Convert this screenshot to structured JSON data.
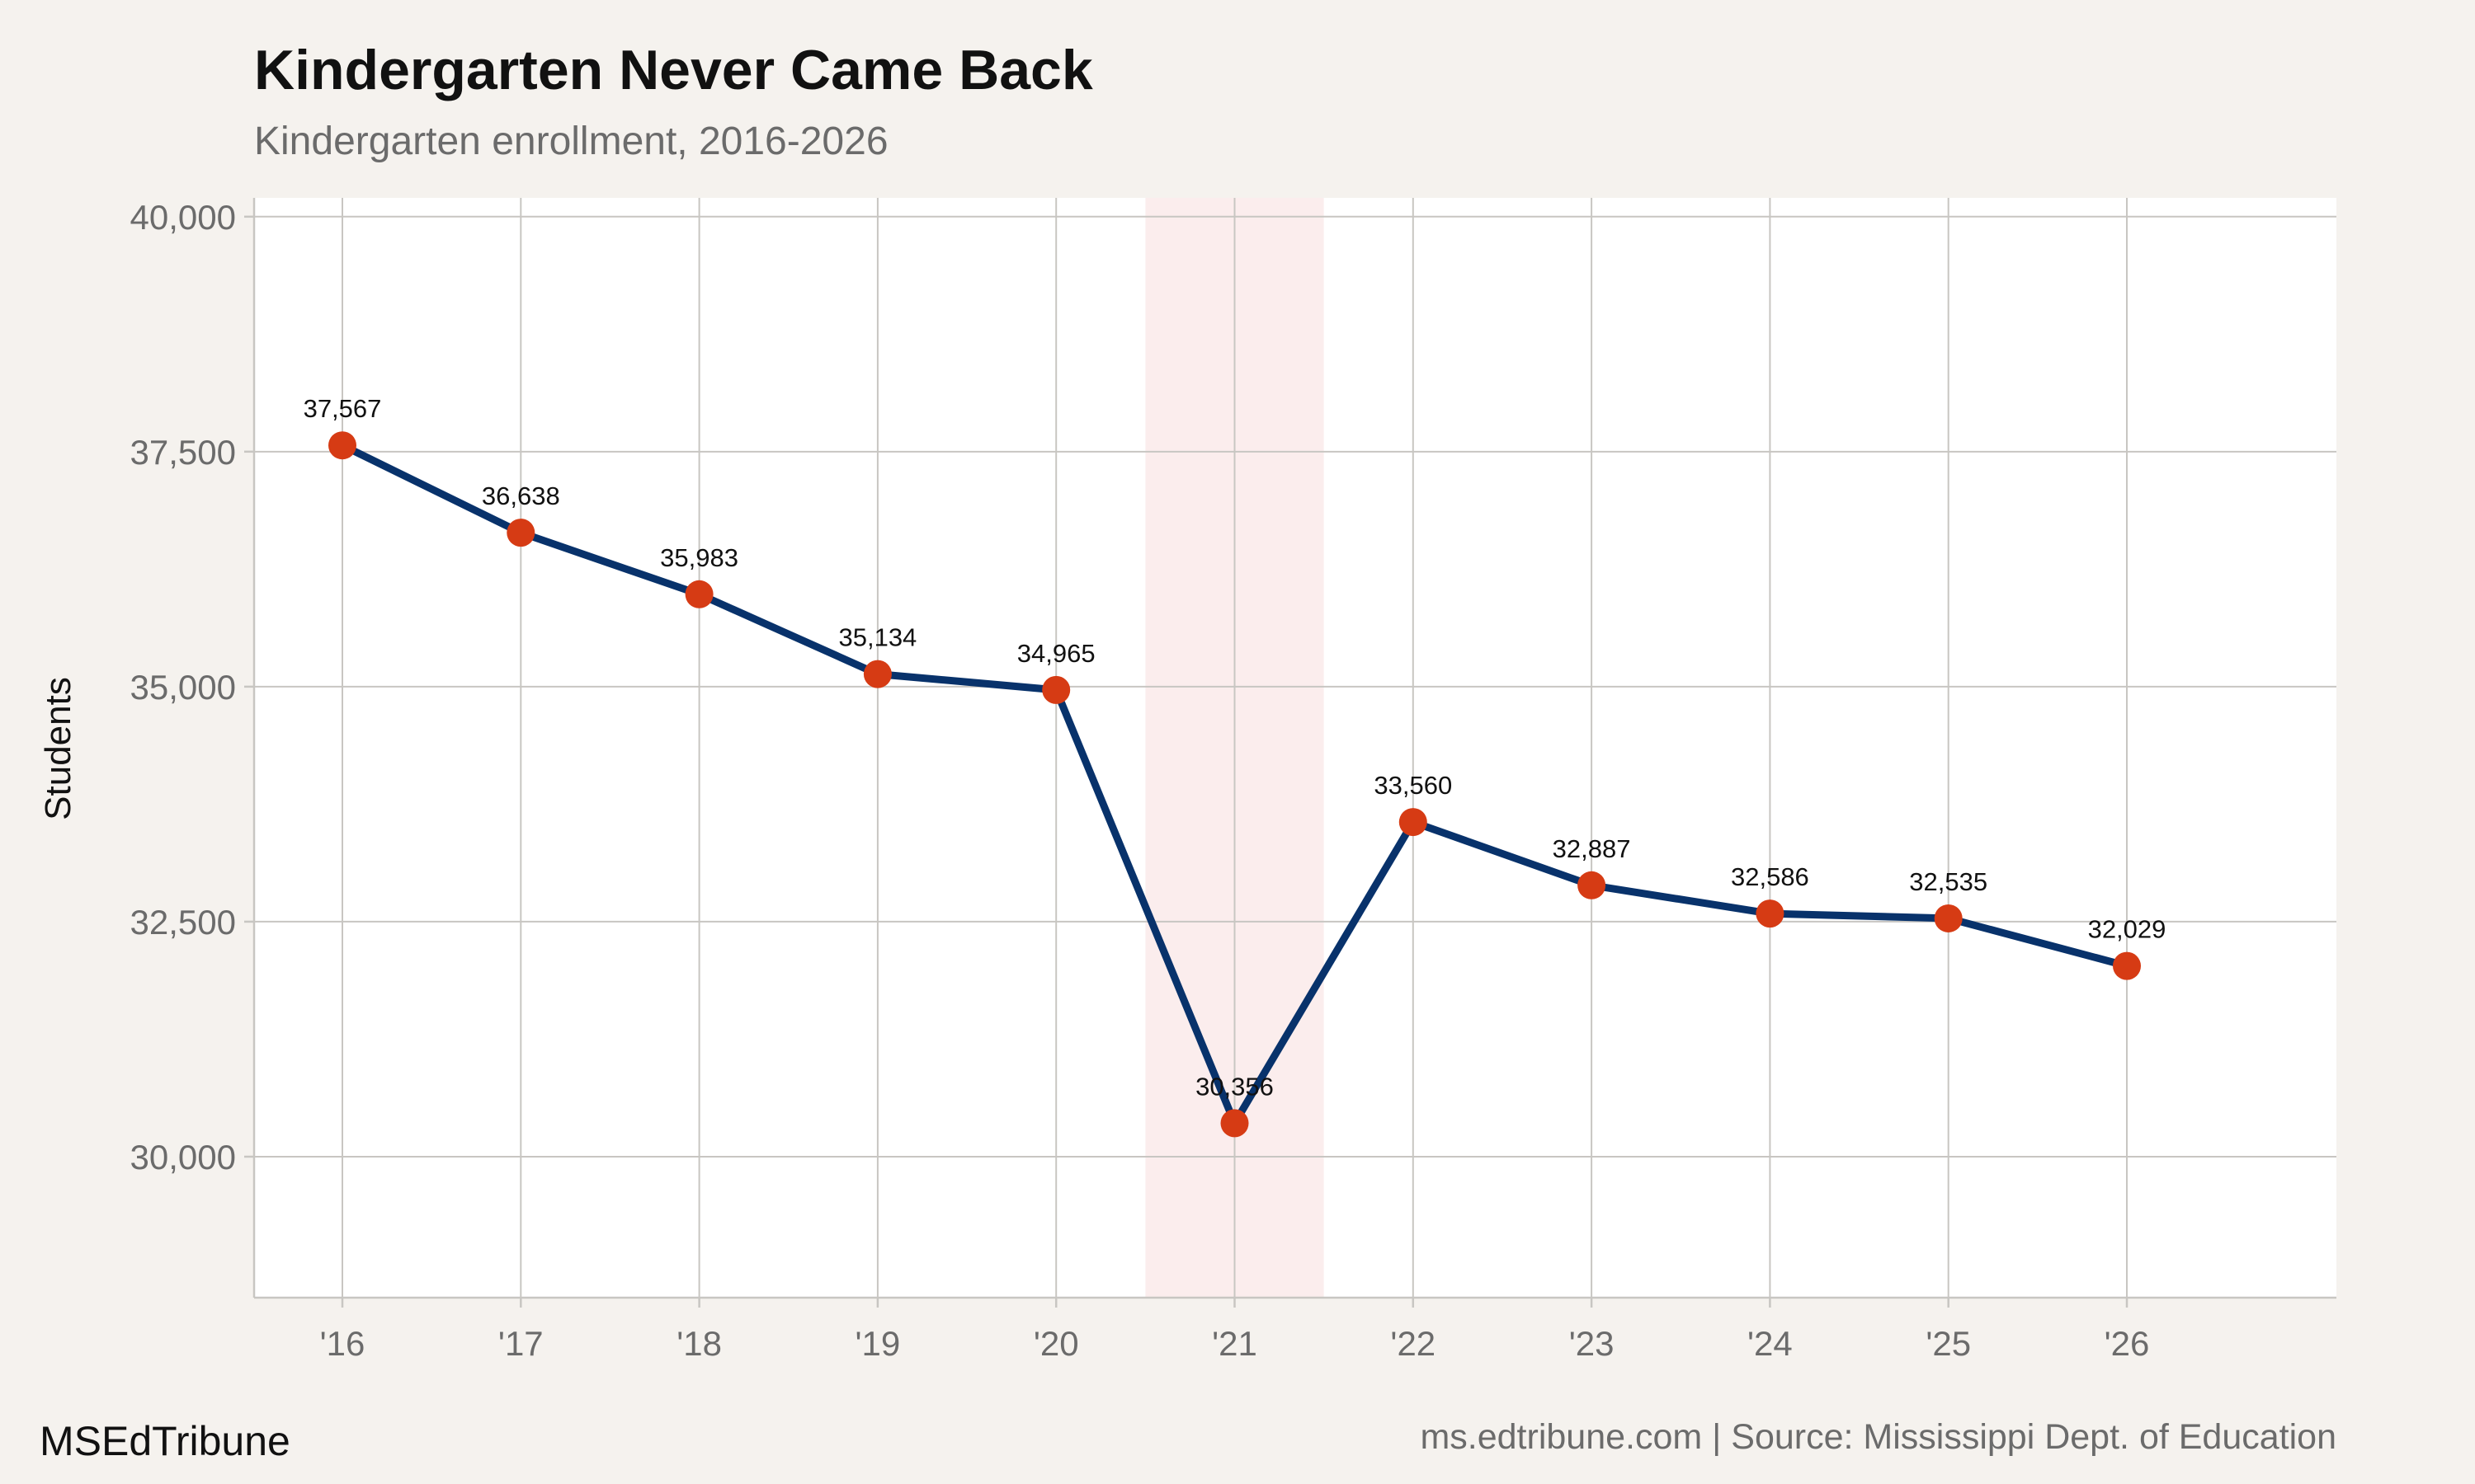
{
  "chart_data": {
    "type": "line",
    "title": "Kindergarten Never Came Back",
    "subtitle": "Kindergarten enrollment, 2016-2026",
    "xlabel": "",
    "ylabel": "Students",
    "categories": [
      "'16",
      "'17",
      "'18",
      "'19",
      "'20",
      "'21",
      "'22",
      "'23",
      "'24",
      "'25",
      "'26"
    ],
    "values": [
      37567,
      36638,
      35983,
      35134,
      34965,
      30356,
      33560,
      32887,
      32586,
      32535,
      32029
    ],
    "data_labels": [
      "37,567",
      "36,638",
      "35,983",
      "35,134",
      "34,965",
      "30,356",
      "33,560",
      "32,887",
      "32,586",
      "32,535",
      "32,029"
    ],
    "y_ticks": [
      30000,
      32500,
      35000,
      37500,
      40000
    ],
    "y_tick_labels": [
      "30,000",
      "32,500",
      "35,000",
      "37,500",
      "40,000"
    ],
    "ylim": [
      28500,
      40200
    ],
    "highlight_category": "'21",
    "grid": true,
    "colors": {
      "line": "#08326b",
      "marker": "#d63b14",
      "highlight": "#fbeded",
      "grid": "#c8c6c2",
      "panel": "#ffffff",
      "background": "#f5f2ee"
    }
  },
  "footer": {
    "brand": "MSEdTribune",
    "source": "ms.edtribune.com | Source: Mississippi Dept. of Education"
  }
}
